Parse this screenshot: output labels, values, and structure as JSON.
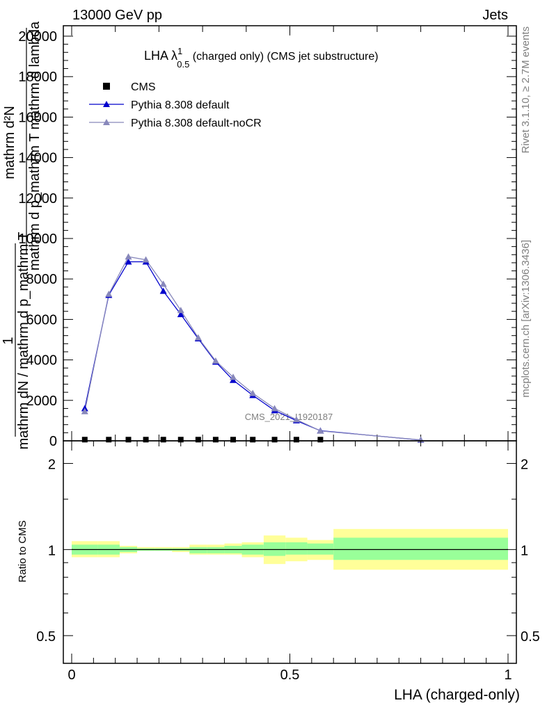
{
  "header": {
    "left": "13000 GeV pp",
    "right": "Jets"
  },
  "side": {
    "rivet": "Rivet 3.1.10, ≥ 2.7M events",
    "mcplots": "mcplots.cern.ch [arXiv:1306.3436]"
  },
  "watermark": "CMS_2021_I1920187",
  "chart_data": [
    {
      "type": "line",
      "title": {
        "main": "LHA λ",
        "sup": "1",
        "sub": "0.5",
        "rest": " (charged only) (CMS jet substructure)"
      },
      "ylabel": {
        "upper_num": "mathrm d²N",
        "upper_den": "mathrm d p_mathrm T mathrm d lambda",
        "prefix_num": "1",
        "prefix_den": "mathrm dN / mathrm d p_mathrm T"
      },
      "xlim": [
        0,
        1
      ],
      "ylim": [
        0,
        20500
      ],
      "ytick_labels": [
        "0",
        "2000",
        "4000",
        "6000",
        "8000",
        "10000",
        "12000",
        "14000",
        "16000",
        "18000",
        "20000"
      ],
      "ytick_values": [
        0,
        2000,
        4000,
        6000,
        8000,
        10000,
        12000,
        14000,
        16000,
        18000,
        20000
      ],
      "legend_position": "top-left",
      "series": [
        {
          "name": "CMS",
          "color": "#000000",
          "marker": "square",
          "x": [
            0.03,
            0.085,
            0.13,
            0.17,
            0.21,
            0.25,
            0.29,
            0.33,
            0.37,
            0.415,
            0.465,
            0.515,
            0.57
          ],
          "y": [
            25,
            25,
            25,
            25,
            25,
            25,
            25,
            25,
            25,
            25,
            25,
            25,
            25
          ]
        },
        {
          "name": "Pythia 8.308 default",
          "color": "#0000cc",
          "marker": "triangle",
          "x": [
            0.03,
            0.085,
            0.13,
            0.17,
            0.21,
            0.25,
            0.29,
            0.33,
            0.37,
            0.415,
            0.465,
            0.515,
            0.57,
            0.8
          ],
          "y": [
            1600,
            7200,
            8850,
            8850,
            7400,
            6250,
            5050,
            3900,
            3000,
            2250,
            1500,
            1000,
            500,
            40
          ]
        },
        {
          "name": "Pythia 8.308 default-noCR",
          "color": "#8888bb",
          "marker": "triangle",
          "x": [
            0.03,
            0.085,
            0.13,
            0.17,
            0.21,
            0.25,
            0.29,
            0.33,
            0.37,
            0.415,
            0.465,
            0.515,
            0.57,
            0.8
          ],
          "y": [
            1450,
            7250,
            9100,
            8950,
            7750,
            6450,
            5100,
            3950,
            3150,
            2350,
            1600,
            1050,
            490,
            45
          ]
        }
      ]
    },
    {
      "type": "area",
      "ylabel": "Ratio to CMS",
      "xlabel": "LHA (charged-only)",
      "xlim": [
        0,
        1
      ],
      "ylim": [
        0.4,
        2.4
      ],
      "yscale": "log",
      "ytick_labels": [
        "0.5",
        "1",
        "2"
      ],
      "ytick_values": [
        0.5,
        1,
        2
      ],
      "xtick_labels": [
        "0",
        "0.5",
        "1"
      ],
      "xtick_values": [
        0,
        0.5,
        1
      ],
      "band_colors": {
        "stat": "#99ff99",
        "total": "#ffff99"
      },
      "bins": [
        {
          "lo": 0.0,
          "hi": 0.06,
          "stat_lo": 0.96,
          "stat_hi": 1.04,
          "tot_lo": 0.94,
          "tot_hi": 1.07
        },
        {
          "lo": 0.06,
          "hi": 0.11,
          "stat_lo": 0.96,
          "stat_hi": 1.04,
          "tot_lo": 0.94,
          "tot_hi": 1.07
        },
        {
          "lo": 0.11,
          "hi": 0.15,
          "stat_lo": 0.98,
          "stat_hi": 1.02,
          "tot_lo": 0.97,
          "tot_hi": 1.03
        },
        {
          "lo": 0.15,
          "hi": 0.19,
          "stat_lo": 0.99,
          "stat_hi": 1.01,
          "tot_lo": 0.99,
          "tot_hi": 1.02
        },
        {
          "lo": 0.19,
          "hi": 0.23,
          "stat_lo": 0.99,
          "stat_hi": 1.01,
          "tot_lo": 0.99,
          "tot_hi": 1.02
        },
        {
          "lo": 0.23,
          "hi": 0.27,
          "stat_lo": 0.99,
          "stat_hi": 1.01,
          "tot_lo": 0.98,
          "tot_hi": 1.02
        },
        {
          "lo": 0.27,
          "hi": 0.31,
          "stat_lo": 0.97,
          "stat_hi": 1.02,
          "tot_lo": 0.96,
          "tot_hi": 1.04
        },
        {
          "lo": 0.31,
          "hi": 0.35,
          "stat_lo": 0.97,
          "stat_hi": 1.02,
          "tot_lo": 0.96,
          "tot_hi": 1.04
        },
        {
          "lo": 0.35,
          "hi": 0.39,
          "stat_lo": 0.97,
          "stat_hi": 1.03,
          "tot_lo": 0.96,
          "tot_hi": 1.05
        },
        {
          "lo": 0.39,
          "hi": 0.44,
          "stat_lo": 0.96,
          "stat_hi": 1.04,
          "tot_lo": 0.94,
          "tot_hi": 1.06
        },
        {
          "lo": 0.44,
          "hi": 0.49,
          "stat_lo": 0.95,
          "stat_hi": 1.06,
          "tot_lo": 0.89,
          "tot_hi": 1.12
        },
        {
          "lo": 0.49,
          "hi": 0.54,
          "stat_lo": 0.96,
          "stat_hi": 1.06,
          "tot_lo": 0.91,
          "tot_hi": 1.1
        },
        {
          "lo": 0.54,
          "hi": 0.6,
          "stat_lo": 0.96,
          "stat_hi": 1.05,
          "tot_lo": 0.92,
          "tot_hi": 1.08
        },
        {
          "lo": 0.6,
          "hi": 1.0,
          "stat_lo": 0.92,
          "stat_hi": 1.1,
          "tot_lo": 0.85,
          "tot_hi": 1.18
        }
      ],
      "ref_line": 1
    }
  ]
}
